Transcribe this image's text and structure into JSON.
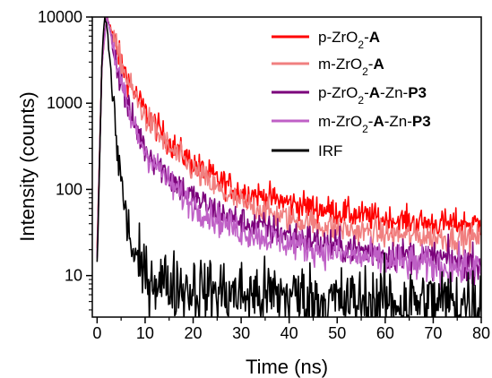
{
  "chart_data": {
    "type": "line",
    "title": "",
    "xlabel": "Time (ns)",
    "ylabel": "Intensity (counts)",
    "xlim": [
      -1,
      80
    ],
    "ylim": [
      3.3,
      10000
    ],
    "yscale": "log",
    "x_ticks": [
      0,
      10,
      20,
      30,
      40,
      50,
      60,
      70,
      80
    ],
    "y_ticks": [
      10,
      100,
      1000,
      10000
    ],
    "x_tick_labels": [
      "0",
      "10",
      "20",
      "30",
      "40",
      "50",
      "60",
      "70",
      "80"
    ],
    "y_tick_labels": [
      "10",
      "100",
      "1000",
      "10000"
    ],
    "grid": false,
    "legend_position": "top-right",
    "series": [
      {
        "name": "p-ZrO2-A",
        "legend_parts": [
          [
            "p-ZrO",
            false,
            false
          ],
          [
            "2",
            true,
            false
          ],
          [
            "-",
            false,
            false
          ],
          [
            "A",
            false,
            true
          ]
        ],
        "color": "#ff0000",
        "x": [
          0,
          1,
          2,
          3,
          4,
          5,
          7,
          10,
          15,
          20,
          25,
          30,
          40,
          50,
          60,
          70,
          80
        ],
        "y": [
          20,
          3000,
          10000,
          7000,
          4500,
          3000,
          1600,
          800,
          350,
          200,
          130,
          95,
          70,
          55,
          45,
          40,
          40
        ],
        "noise": 0.16
      },
      {
        "name": "m-ZrO2-A",
        "legend_parts": [
          [
            "m-ZrO",
            false,
            false
          ],
          [
            "2",
            true,
            false
          ],
          [
            "-",
            false,
            false
          ],
          [
            "A",
            false,
            true
          ]
        ],
        "color": "#f08080",
        "x": [
          0,
          1,
          2,
          3,
          4,
          5,
          7,
          10,
          15,
          20,
          25,
          30,
          40,
          50,
          60,
          70,
          80
        ],
        "y": [
          18,
          2800,
          10000,
          7000,
          4300,
          2900,
          1500,
          700,
          300,
          170,
          100,
          70,
          45,
          35,
          30,
          28,
          27
        ],
        "noise": 0.16
      },
      {
        "name": "p-ZrO2-A-Zn-P3",
        "legend_parts": [
          [
            "p-ZrO",
            false,
            false
          ],
          [
            "2",
            true,
            false
          ],
          [
            "-",
            false,
            false
          ],
          [
            "A",
            false,
            true
          ],
          [
            "-Zn-",
            false,
            false
          ],
          [
            "P3",
            false,
            true
          ]
        ],
        "color": "#7b007b",
        "x": [
          0,
          1,
          2,
          3,
          4,
          5,
          7,
          10,
          15,
          20,
          25,
          30,
          40,
          50,
          60,
          70,
          80
        ],
        "y": [
          17,
          3000,
          10000,
          6000,
          3000,
          1700,
          700,
          300,
          140,
          80,
          55,
          42,
          30,
          22,
          18,
          16,
          14
        ],
        "noise": 0.18
      },
      {
        "name": "m-ZrO2-A-Zn-P3",
        "legend_parts": [
          [
            "m-ZrO",
            false,
            false
          ],
          [
            "2",
            true,
            false
          ],
          [
            "-",
            false,
            false
          ],
          [
            "A",
            false,
            true
          ],
          [
            "-Zn-",
            false,
            false
          ],
          [
            "P3",
            false,
            true
          ]
        ],
        "color": "#bf60c6",
        "x": [
          0,
          1,
          2,
          3,
          4,
          5,
          7,
          10,
          15,
          20,
          25,
          30,
          40,
          50,
          60,
          70,
          80
        ],
        "y": [
          16,
          2900,
          10000,
          6000,
          2900,
          1600,
          650,
          280,
          120,
          65,
          45,
          33,
          24,
          18,
          15,
          13,
          12
        ],
        "noise": 0.18
      },
      {
        "name": "IRF",
        "legend_parts": [
          [
            "IRF",
            false,
            false
          ]
        ],
        "color": "#000000",
        "x": [
          0,
          1,
          1.5,
          2,
          3,
          4,
          5,
          6,
          7,
          8,
          10,
          15,
          20,
          30,
          40,
          50,
          60,
          70,
          80
        ],
        "y": [
          12,
          3000,
          10000,
          8000,
          2000,
          400,
          120,
          50,
          25,
          15,
          10,
          8,
          7,
          6,
          6,
          5,
          5,
          5,
          5
        ],
        "noise": 0.3
      }
    ]
  }
}
